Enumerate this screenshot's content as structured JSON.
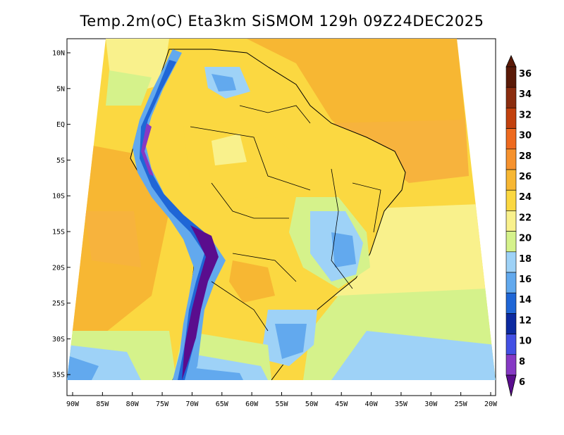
{
  "title": "Temp.2m(oC) Eta3km SiSMOM 129h 09Z24DEC2025",
  "lat_labels": [
    "10N",
    "5N",
    "EQ",
    "5S",
    "10S",
    "15S",
    "20S",
    "25S",
    "30S",
    "35S"
  ],
  "lon_labels": [
    "90W",
    "85W",
    "80W",
    "75W",
    "70W",
    "65W",
    "60W",
    "55W",
    "50W",
    "45W",
    "40W",
    "35W",
    "30W",
    "25W",
    "20W"
  ],
  "colorbar": {
    "labels": [
      "36",
      "34",
      "32",
      "30",
      "28",
      "26",
      "24",
      "22",
      "20",
      "18",
      "16",
      "14",
      "12",
      "10",
      "8",
      "6"
    ],
    "colors": [
      "#5a1a08",
      "#8b2d0f",
      "#c2410e",
      "#ee6a1f",
      "#f6922e",
      "#f7b733",
      "#fbd841",
      "#f9f18c",
      "#d5f28b",
      "#9ed2f7",
      "#62a9ee",
      "#1f66d6",
      "#0c2aa0",
      "#4350e4",
      "#8639c4",
      "#5a0d8e"
    ]
  },
  "palette": {
    "ocean_warm": "#f7b33d",
    "ocean_mid": "#fbd841",
    "ocean_cool": "#f9f18c",
    "ocean_cold": "#9ed2f7",
    "land_base": "#fbd841",
    "land_hot": "#f7b733",
    "highland_cool": "#9ed2f7",
    "andes_blue": "#1f66d6",
    "andes_cold": "#5a0d8e",
    "border": "#000000"
  }
}
